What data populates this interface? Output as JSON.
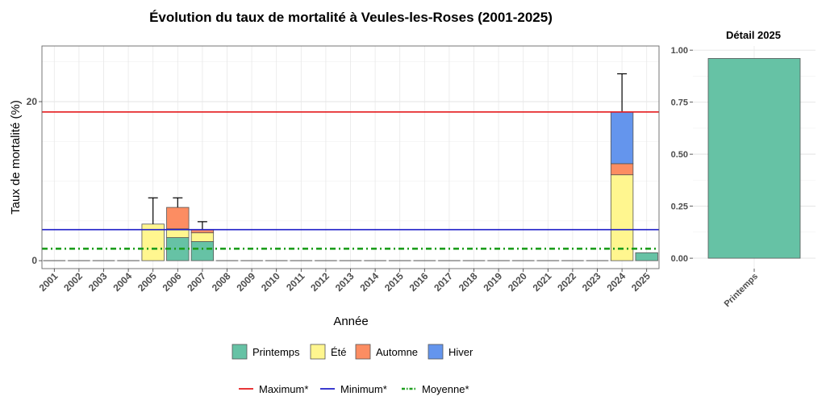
{
  "chart_data": [
    {
      "type": "bar",
      "stacked": true,
      "title": "Évolution du taux de mortalité à Veules-les-Roses (2001-2025)",
      "xlabel": "Année",
      "ylabel": "Taux de mortalité (%)",
      "ylim": [
        -1,
        27
      ],
      "yticks": [
        0,
        20
      ],
      "grid": true,
      "categories": [
        "2001",
        "2002",
        "2003",
        "2004",
        "2005",
        "2006",
        "2007",
        "2008",
        "2009",
        "2010",
        "2011",
        "2012",
        "2013",
        "2014",
        "2015",
        "2016",
        "2017",
        "2018",
        "2019",
        "2020",
        "2021",
        "2022",
        "2023",
        "2024",
        "2025"
      ],
      "series": [
        {
          "name": "Printemps",
          "color": "#66c2a5",
          "values": [
            0,
            0,
            0,
            0,
            0,
            2.9,
            2.4,
            0,
            0,
            0,
            0,
            0,
            0,
            0,
            0,
            0,
            0,
            0,
            0,
            0,
            0,
            0,
            0,
            0,
            1.0
          ]
        },
        {
          "name": "Été",
          "color": "#fff68f",
          "values": [
            0,
            0,
            0,
            0,
            4.6,
            1.1,
            1.1,
            0,
            0,
            0,
            0,
            0,
            0,
            0,
            0,
            0,
            0,
            0,
            0,
            0,
            0,
            0,
            0,
            10.8,
            0
          ]
        },
        {
          "name": "Automne",
          "color": "#fc8d62",
          "values": [
            0,
            0,
            0,
            0,
            0,
            2.7,
            0.4,
            0,
            0,
            0,
            0,
            0,
            0,
            0,
            0,
            0,
            0,
            0,
            0,
            0,
            0,
            0,
            0,
            1.4,
            0
          ]
        },
        {
          "name": "Hiver",
          "color": "#6495ed",
          "values": [
            0,
            0,
            0,
            0,
            0,
            0,
            0,
            0,
            0,
            0,
            0,
            0,
            0,
            0,
            0,
            0,
            0,
            0,
            0,
            0,
            0,
            0,
            0,
            6.5,
            0
          ]
        }
      ],
      "error_bars": [
        {
          "x": "2005",
          "low": 4.6,
          "high": 7.9
        },
        {
          "x": "2006",
          "low": 6.7,
          "high": 7.9
        },
        {
          "x": "2007",
          "low": 3.9,
          "high": 4.9
        },
        {
          "x": "2024",
          "low": 18.7,
          "high": 23.5
        }
      ],
      "reference_lines": [
        {
          "name": "Maximum*",
          "value": 18.7,
          "color": "#e41a1c",
          "style": "solid"
        },
        {
          "name": "Minimum*",
          "value": 3.9,
          "color": "#1f1fc8",
          "style": "solid"
        },
        {
          "name": "Moyenne*",
          "value": 1.5,
          "color": "#1e9e1e",
          "style": "dashdot"
        }
      ],
      "legend_position": "bottom"
    },
    {
      "type": "bar",
      "title": "Détail 2025",
      "categories": [
        "Printemps"
      ],
      "values": [
        0.96
      ],
      "color": "#66c2a5",
      "ylim": [
        -0.05,
        1.02
      ],
      "yticks": [
        "0.00",
        "0.25",
        "0.50",
        "0.75",
        "1.00"
      ],
      "grid": true
    }
  ]
}
